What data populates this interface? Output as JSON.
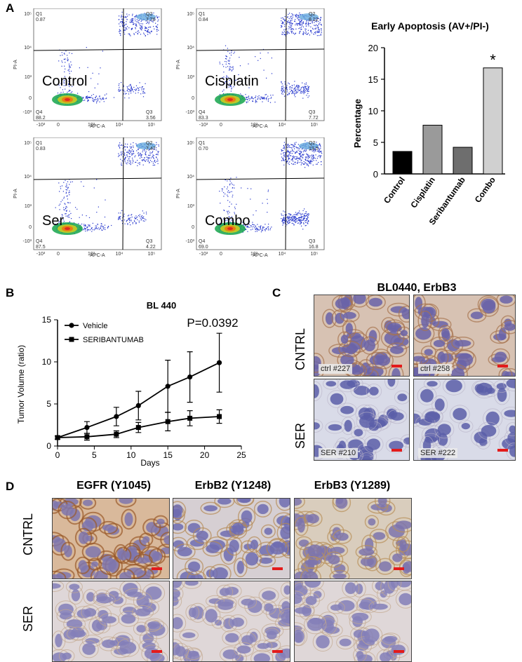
{
  "panels": {
    "a": "A",
    "b": "B",
    "c": "C",
    "d": "D"
  },
  "flow": {
    "plots": [
      {
        "label": "Control",
        "q1": "Q1",
        "q1v": "0.87",
        "q2": "Q2",
        "q2v": "7.76",
        "q3": "Q3",
        "q3v": "3.56",
        "q4": "Q4",
        "q4v": "88.2",
        "xlab": "APC-A",
        "ylab": "PI-A"
      },
      {
        "label": "Cisplatin",
        "q1": "Q1",
        "q1v": "0.84",
        "q2": "Q2",
        "q2v": "8.12",
        "q3": "Q3",
        "q3v": "7.72",
        "q4": "Q4",
        "q4v": "83.3",
        "xlab": "APC-A",
        "ylab": "PI-A"
      },
      {
        "label": "Ser",
        "q1": "Q1",
        "q1v": "0.83",
        "q2": "Q2",
        "q2v": "7.47",
        "q3": "Q3",
        "q3v": "4.22",
        "q4": "Q4",
        "q4v": "87.5",
        "xlab": "APC-A",
        "ylab": "PI-A"
      },
      {
        "label": "Combo",
        "q1": "Q1",
        "q1v": "0.70",
        "q2": "Q2",
        "q2v": "13.5",
        "q3": "Q3",
        "q3v": "16.8",
        "q4": "Q4",
        "q4v": "69.0",
        "xlab": "APC-A",
        "ylab": "PI-A"
      }
    ],
    "x_ticks": [
      "-10³",
      "0",
      "10³",
      "10⁴",
      "10⁵"
    ],
    "y_ticks": [
      "10⁵",
      "10⁴",
      "10³",
      "0",
      "-10³"
    ]
  },
  "ihc_c": {
    "title": "BL0440, ErbB3",
    "row1": "CNTRL",
    "row2": "SER",
    "tags": [
      "ctrl #227",
      "ctrl #258",
      "SER #210",
      "SER #222"
    ]
  },
  "ihc_d": {
    "cols": [
      "EGFR (Y1045)",
      "ErbB2 (Y1248)",
      "ErbB3 (Y1289)"
    ],
    "row1": "CNTRL",
    "row2": "SER"
  },
  "chart_data": [
    {
      "type": "bar",
      "title": "Early Apoptosis (AV+/PI-)",
      "categories": [
        "Control",
        "Cisplatin",
        "Seribantumab",
        "Combo"
      ],
      "values": [
        3.56,
        7.72,
        4.22,
        16.8
      ],
      "colors": [
        "#000000",
        "#9a9a9a",
        "#6e6e6e",
        "#d0d0d0"
      ],
      "ylabel": "Percentage",
      "ylim": [
        0,
        20
      ],
      "yticks": [
        0,
        5,
        10,
        15,
        20
      ],
      "annotation": "*"
    },
    {
      "type": "line",
      "title": "BL 440",
      "xlabel": "Days",
      "ylabel": "Tumor Volume (ratio)",
      "xlim": [
        0,
        25
      ],
      "ylim": [
        0,
        15
      ],
      "xticks": [
        0,
        5,
        10,
        15,
        20,
        25
      ],
      "yticks": [
        0,
        5,
        10,
        15
      ],
      "annotation": "P=0.0392",
      "series": [
        {
          "name": "Vehicle",
          "marker": "circle",
          "x": [
            0,
            4,
            8,
            11,
            15,
            18,
            22
          ],
          "y": [
            1.0,
            2.2,
            3.5,
            4.8,
            7.1,
            8.2,
            9.9
          ],
          "err": [
            0.2,
            0.7,
            1.1,
            1.7,
            3.1,
            3.0,
            3.5
          ]
        },
        {
          "name": "SERIBANTUMAB",
          "marker": "square",
          "x": [
            0,
            4,
            8,
            11,
            15,
            18,
            22
          ],
          "y": [
            1.0,
            1.1,
            1.4,
            2.2,
            2.9,
            3.3,
            3.5
          ],
          "err": [
            0.2,
            0.4,
            0.4,
            0.6,
            1.1,
            0.9,
            0.8
          ]
        }
      ]
    }
  ]
}
